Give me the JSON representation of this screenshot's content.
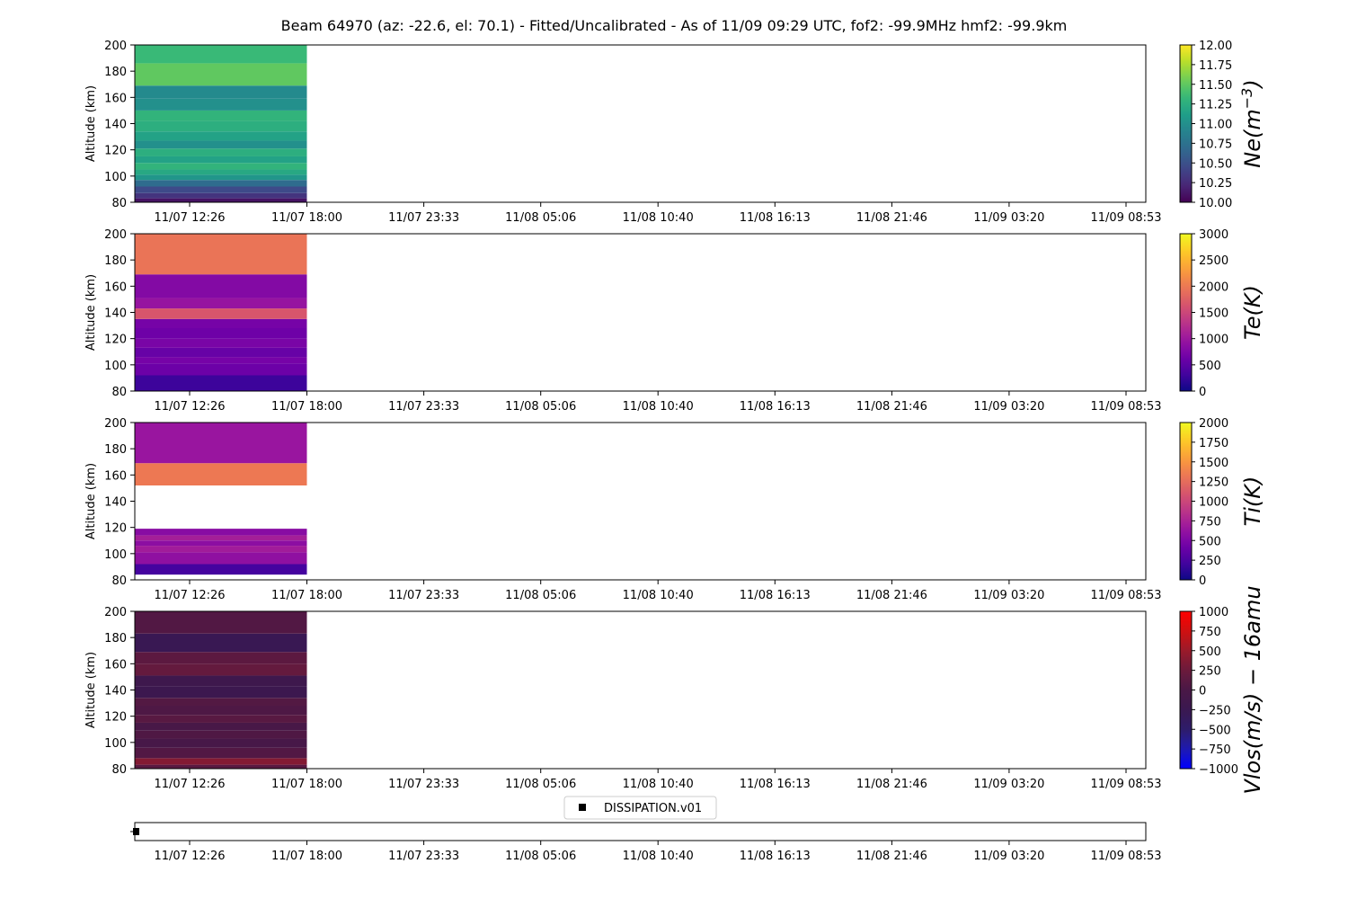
{
  "figure": {
    "title": "Beam 64970 (az: -22.6, el: 70.1) - Fitted/Uncalibrated - As of 11/09 09:29 UTC, fof2: -99.9MHz  hmf2: -99.9km"
  },
  "chart_data": [
    {
      "type": "heatmap",
      "ylabel": "Altitude (km)",
      "ylim": [
        80,
        200
      ],
      "yticks": [
        80,
        100,
        120,
        140,
        160,
        180,
        200
      ],
      "xticks": [
        "11/07 12:26",
        "11/07 18:00",
        "11/07 23:33",
        "11/08 05:06",
        "11/08 10:40",
        "11/08 16:13",
        "11/08 21:46",
        "11/09 03:20",
        "11/09 08:53"
      ],
      "data_time_range": [
        "11/07 09:39",
        "11/07 18:00"
      ],
      "colorbar": {
        "label": "Ne(m^-3)",
        "label_parts": [
          "Ne(m",
          "−3",
          ")"
        ],
        "colormap": "viridis",
        "range": [
          10.0,
          12.0
        ],
        "ticks": [
          "10.00",
          "10.25",
          "10.50",
          "10.75",
          "11.00",
          "11.25",
          "11.50",
          "11.75",
          "12.00"
        ]
      },
      "cells": [
        {
          "alt_range": [
            80,
            83
          ],
          "value": 10.1
        },
        {
          "alt_range": [
            83,
            87
          ],
          "value": 10.3
        },
        {
          "alt_range": [
            87,
            92
          ],
          "value": 10.45
        },
        {
          "alt_range": [
            92,
            97
          ],
          "value": 10.7
        },
        {
          "alt_range": [
            97,
            101
          ],
          "value": 11.05
        },
        {
          "alt_range": [
            101,
            105
          ],
          "value": 11.2
        },
        {
          "alt_range": [
            105,
            110
          ],
          "value": 11.3
        },
        {
          "alt_range": [
            110,
            115
          ],
          "value": 11.15
        },
        {
          "alt_range": [
            115,
            121
          ],
          "value": 11.25
        },
        {
          "alt_range": [
            121,
            127
          ],
          "value": 11.0
        },
        {
          "alt_range": [
            127,
            134
          ],
          "value": 11.15
        },
        {
          "alt_range": [
            134,
            142
          ],
          "value": 11.25
        },
        {
          "alt_range": [
            142,
            150
          ],
          "value": 11.3
        },
        {
          "alt_range": [
            150,
            159
          ],
          "value": 11.0
        },
        {
          "alt_range": [
            159,
            169
          ],
          "value": 10.95
        },
        {
          "alt_range": [
            169,
            186
          ],
          "value": 11.5
        },
        {
          "alt_range": [
            186,
            200
          ],
          "value": 11.35
        }
      ]
    },
    {
      "type": "heatmap",
      "ylabel": "Altitude (km)",
      "ylim": [
        80,
        200
      ],
      "yticks": [
        80,
        100,
        120,
        140,
        160,
        180,
        200
      ],
      "xticks": [
        "11/07 12:26",
        "11/07 18:00",
        "11/07 23:33",
        "11/08 05:06",
        "11/08 10:40",
        "11/08 16:13",
        "11/08 21:46",
        "11/09 03:20",
        "11/09 08:53"
      ],
      "data_time_range": [
        "11/07 09:39",
        "11/07 18:00"
      ],
      "colorbar": {
        "label": "Te(K)",
        "label_parts": [
          "Te(K)"
        ],
        "colormap": "plasma",
        "range": [
          0,
          3000
        ],
        "ticks": [
          "0",
          "500",
          "1000",
          "1500",
          "2000",
          "2500",
          "3000"
        ]
      },
      "cells": [
        {
          "alt_range": [
            80,
            92
          ],
          "value": 280
        },
        {
          "alt_range": [
            92,
            101
          ],
          "value": 620
        },
        {
          "alt_range": [
            101,
            106
          ],
          "value": 700
        },
        {
          "alt_range": [
            106,
            113
          ],
          "value": 580
        },
        {
          "alt_range": [
            113,
            120
          ],
          "value": 720
        },
        {
          "alt_range": [
            120,
            128
          ],
          "value": 640
        },
        {
          "alt_range": [
            128,
            135
          ],
          "value": 700
        },
        {
          "alt_range": [
            135,
            143
          ],
          "value": 1650
        },
        {
          "alt_range": [
            143,
            151
          ],
          "value": 950
        },
        {
          "alt_range": [
            151,
            169
          ],
          "value": 800
        },
        {
          "alt_range": [
            169,
            200
          ],
          "value": 1950
        }
      ]
    },
    {
      "type": "heatmap",
      "ylabel": "Altitude (km)",
      "ylim": [
        80,
        200
      ],
      "yticks": [
        80,
        100,
        120,
        140,
        160,
        180,
        200
      ],
      "xticks": [
        "11/07 12:26",
        "11/07 18:00",
        "11/07 23:33",
        "11/08 05:06",
        "11/08 10:40",
        "11/08 16:13",
        "11/08 21:46",
        "11/09 03:20",
        "11/09 08:53"
      ],
      "data_time_range": [
        "11/07 09:39",
        "11/07 18:00"
      ],
      "colorbar": {
        "label": "Ti(K)",
        "label_parts": [
          "Ti(K)"
        ],
        "colormap": "plasma",
        "range": [
          0,
          2000
        ],
        "ticks": [
          "0",
          "250",
          "500",
          "750",
          "1000",
          "1250",
          "1500",
          "1750",
          "2000"
        ]
      },
      "cells": [
        {
          "alt_range": [
            84,
            92
          ],
          "value": 220
        },
        {
          "alt_range": [
            92,
            101
          ],
          "value": 600
        },
        {
          "alt_range": [
            101,
            106
          ],
          "value": 700
        },
        {
          "alt_range": [
            106,
            110
          ],
          "value": 580
        },
        {
          "alt_range": [
            110,
            114
          ],
          "value": 720
        },
        {
          "alt_range": [
            114,
            119
          ],
          "value": 560
        },
        {
          "alt_range": [
            152,
            169
          ],
          "value": 1330
        },
        {
          "alt_range": [
            169,
            200
          ],
          "value": 650
        }
      ]
    },
    {
      "type": "heatmap",
      "ylabel": "Altitude (km)",
      "ylim": [
        80,
        200
      ],
      "yticks": [
        80,
        100,
        120,
        140,
        160,
        180,
        200
      ],
      "xticks": [
        "11/07 12:26",
        "11/07 18:00",
        "11/07 23:33",
        "11/08 05:06",
        "11/08 10:40",
        "11/08 16:13",
        "11/08 21:46",
        "11/09 03:20",
        "11/09 08:53"
      ],
      "data_time_range": [
        "11/07 09:39",
        "11/07 18:00"
      ],
      "colorbar": {
        "label": "Vlos(m/s) − 16amu",
        "label_parts": [
          "Vlos(m/s) − 16amu"
        ],
        "colormap": "bwr_dark",
        "range": [
          -1000,
          1000
        ],
        "ticks": [
          "−1000",
          "−750",
          "−500",
          "−250",
          "0",
          "250",
          "500",
          "750",
          "1000"
        ]
      },
      "cells": [
        {
          "alt_range": [
            80,
            83
          ],
          "value": 120
        },
        {
          "alt_range": [
            83,
            88
          ],
          "value": 380
        },
        {
          "alt_range": [
            88,
            96
          ],
          "value": 60
        },
        {
          "alt_range": [
            96,
            103
          ],
          "value": -40
        },
        {
          "alt_range": [
            103,
            109
          ],
          "value": 40
        },
        {
          "alt_range": [
            109,
            115
          ],
          "value": -30
        },
        {
          "alt_range": [
            115,
            121
          ],
          "value": 110
        },
        {
          "alt_range": [
            121,
            128
          ],
          "value": 30
        },
        {
          "alt_range": [
            128,
            134
          ],
          "value": 70
        },
        {
          "alt_range": [
            134,
            143
          ],
          "value": -220
        },
        {
          "alt_range": [
            143,
            151
          ],
          "value": -180
        },
        {
          "alt_range": [
            151,
            160
          ],
          "value": 200
        },
        {
          "alt_range": [
            160,
            169
          ],
          "value": 140
        },
        {
          "alt_range": [
            169,
            183
          ],
          "value": -280
        },
        {
          "alt_range": [
            183,
            200
          ],
          "value": 60
        }
      ]
    },
    {
      "type": "scatter",
      "xticks": [
        "11/07 12:26",
        "11/07 18:00",
        "11/07 23:33",
        "11/08 05:06",
        "11/08 10:40",
        "11/08 16:13",
        "11/08 21:46",
        "11/09 03:20",
        "11/09 08:53"
      ],
      "legend": [
        "DISSIPATION.v01"
      ],
      "series": [
        {
          "name": "DISSIPATION.v01",
          "x": [
            "11/07 09:39"
          ],
          "color": "#000000",
          "marker": "square"
        }
      ]
    }
  ]
}
